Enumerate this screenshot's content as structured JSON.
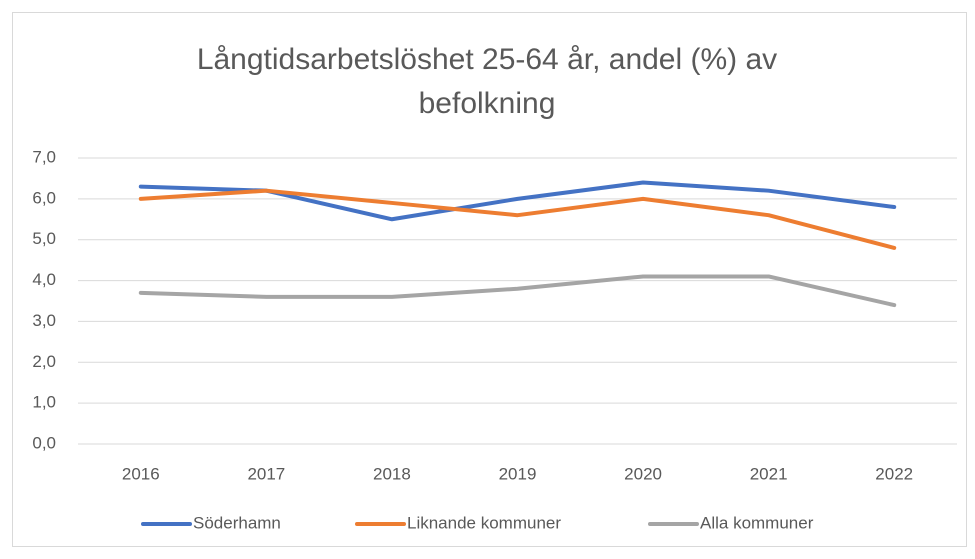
{
  "chart_data": {
    "type": "line",
    "title": "Långtidsarbetslöshet 25-64 år, andel (%) av befolkning",
    "categories": [
      "2016",
      "2017",
      "2018",
      "2019",
      "2020",
      "2021",
      "2022"
    ],
    "series": [
      {
        "name": "Söderhamn",
        "color": "#4472c4",
        "values": [
          6.3,
          6.2,
          5.5,
          6.0,
          6.4,
          6.2,
          5.8
        ]
      },
      {
        "name": "Liknande kommuner",
        "color": "#ed7d31",
        "values": [
          6.0,
          6.2,
          5.9,
          5.6,
          6.0,
          5.6,
          4.8
        ]
      },
      {
        "name": "Alla kommuner",
        "color": "#a5a5a5",
        "values": [
          3.7,
          3.6,
          3.6,
          3.8,
          4.1,
          4.1,
          3.4
        ]
      }
    ],
    "ylim": [
      0,
      7
    ],
    "yticks": [
      {
        "value": 0,
        "label": "0,0"
      },
      {
        "value": 1,
        "label": "1,0"
      },
      {
        "value": 2,
        "label": "2,0"
      },
      {
        "value": 3,
        "label": "3,0"
      },
      {
        "value": 4,
        "label": "4,0"
      },
      {
        "value": 5,
        "label": "5,0"
      },
      {
        "value": 6,
        "label": "6,0"
      },
      {
        "value": 7,
        "label": "7,0"
      }
    ],
    "grid": true,
    "legend": "bottom"
  }
}
